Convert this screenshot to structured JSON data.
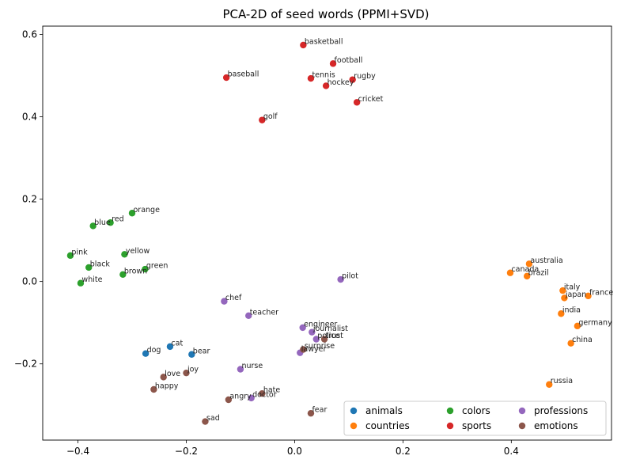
{
  "chart_data": {
    "type": "scatter",
    "title": "PCA-2D of seed words (PPMI+SVD)",
    "xlabel": "",
    "ylabel": "",
    "xlim": [
      -0.465,
      0.585
    ],
    "ylim": [
      -0.385,
      0.62
    ],
    "xticks": [
      -0.4,
      -0.2,
      0.0,
      0.2,
      0.4
    ],
    "yticks": [
      -0.2,
      0.0,
      0.2,
      0.4,
      0.6
    ],
    "xtick_labels": [
      "−0.4",
      "−0.2",
      "0.0",
      "0.2",
      "0.4"
    ],
    "ytick_labels": [
      "−0.2",
      "0.0",
      "0.2",
      "0.4",
      "0.6"
    ],
    "grid": false,
    "legend_position": "lower-right",
    "legend_columns": 3,
    "series": [
      {
        "name": "animals",
        "color": "#1f77b4",
        "points": [
          {
            "label": "dog",
            "x": -0.275,
            "y": -0.175
          },
          {
            "label": "cat",
            "x": -0.23,
            "y": -0.158
          },
          {
            "label": "bear",
            "x": -0.19,
            "y": -0.177
          }
        ]
      },
      {
        "name": "countries",
        "color": "#ff7f0e",
        "points": [
          {
            "label": "australia",
            "x": 0.433,
            "y": 0.043
          },
          {
            "label": "canada",
            "x": 0.398,
            "y": 0.021
          },
          {
            "label": "brazil",
            "x": 0.429,
            "y": 0.013
          },
          {
            "label": "italy",
            "x": 0.495,
            "y": -0.022
          },
          {
            "label": "japan",
            "x": 0.498,
            "y": -0.04
          },
          {
            "label": "france",
            "x": 0.542,
            "y": -0.035
          },
          {
            "label": "india",
            "x": 0.492,
            "y": -0.078
          },
          {
            "label": "germany",
            "x": 0.522,
            "y": -0.108
          },
          {
            "label": "china",
            "x": 0.51,
            "y": -0.15
          },
          {
            "label": "russia",
            "x": 0.47,
            "y": -0.25
          }
        ]
      },
      {
        "name": "colors",
        "color": "#2ca02c",
        "points": [
          {
            "label": "orange",
            "x": -0.3,
            "y": 0.166
          },
          {
            "label": "red",
            "x": -0.34,
            "y": 0.143
          },
          {
            "label": "blue",
            "x": -0.372,
            "y": 0.135
          },
          {
            "label": "pink",
            "x": -0.414,
            "y": 0.063
          },
          {
            "label": "yellow",
            "x": -0.314,
            "y": 0.066
          },
          {
            "label": "black",
            "x": -0.38,
            "y": 0.034
          },
          {
            "label": "green",
            "x": -0.276,
            "y": 0.03
          },
          {
            "label": "brown",
            "x": -0.317,
            "y": 0.017
          },
          {
            "label": "white",
            "x": -0.395,
            "y": -0.004
          }
        ]
      },
      {
        "name": "sports",
        "color": "#d62728",
        "points": [
          {
            "label": "basketball",
            "x": 0.016,
            "y": 0.574
          },
          {
            "label": "football",
            "x": 0.071,
            "y": 0.529
          },
          {
            "label": "baseball",
            "x": -0.126,
            "y": 0.495
          },
          {
            "label": "tennis",
            "x": 0.03,
            "y": 0.493
          },
          {
            "label": "rugby",
            "x": 0.107,
            "y": 0.49
          },
          {
            "label": "hockey",
            "x": 0.058,
            "y": 0.475
          },
          {
            "label": "cricket",
            "x": 0.115,
            "y": 0.435
          },
          {
            "label": "golf",
            "x": -0.06,
            "y": 0.392
          }
        ]
      },
      {
        "name": "professions",
        "color": "#9467bd",
        "points": [
          {
            "label": "pilot",
            "x": 0.085,
            "y": 0.005
          },
          {
            "label": "chef",
            "x": -0.13,
            "y": -0.048
          },
          {
            "label": "teacher",
            "x": -0.085,
            "y": -0.083
          },
          {
            "label": "engineer",
            "x": 0.015,
            "y": -0.112
          },
          {
            "label": "journalist",
            "x": 0.032,
            "y": -0.123
          },
          {
            "label": "police",
            "x": 0.04,
            "y": -0.14
          },
          {
            "label": "lawyer",
            "x": 0.01,
            "y": -0.173
          },
          {
            "label": "nurse",
            "x": -0.1,
            "y": -0.213
          },
          {
            "label": "doctor",
            "x": -0.08,
            "y": -0.283
          }
        ]
      },
      {
        "name": "emotions",
        "color": "#8c564b",
        "points": [
          {
            "label": "trust",
            "x": 0.055,
            "y": -0.14
          },
          {
            "label": "surprise",
            "x": 0.016,
            "y": -0.165
          },
          {
            "label": "joy",
            "x": -0.2,
            "y": -0.222
          },
          {
            "label": "love",
            "x": -0.242,
            "y": -0.232
          },
          {
            "label": "happy",
            "x": -0.26,
            "y": -0.262
          },
          {
            "label": "hate",
            "x": -0.06,
            "y": -0.272
          },
          {
            "label": "angry",
            "x": -0.122,
            "y": -0.287
          },
          {
            "label": "fear",
            "x": 0.03,
            "y": -0.32
          },
          {
            "label": "sad",
            "x": -0.165,
            "y": -0.34
          }
        ]
      }
    ]
  }
}
